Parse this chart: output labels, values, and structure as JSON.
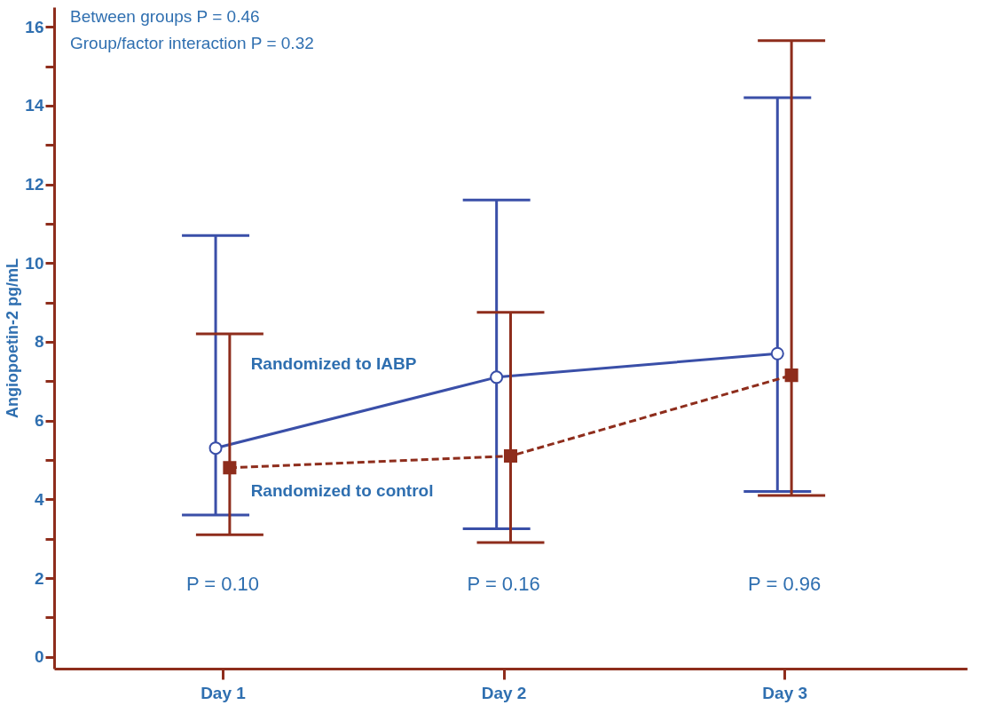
{
  "chart_data": {
    "type": "line",
    "ylabel": "Angiopoetin-2 pg/mL",
    "categories": [
      "Day 1",
      "Day 2",
      "Day 3"
    ],
    "series": [
      {
        "name": "Randomized to IABP",
        "color": "#3a4fa8",
        "values": [
          5.3,
          7.1,
          7.7
        ],
        "errors": [
          [
            3.6,
            10.7
          ],
          [
            3.25,
            11.6
          ],
          [
            4.2,
            14.2
          ]
        ],
        "marker": "circle",
        "line_style": "solid"
      },
      {
        "name": "Randomized to control",
        "color": "#8e2d1c",
        "values": [
          4.8,
          5.1,
          7.15
        ],
        "errors": [
          [
            3.1,
            8.2
          ],
          [
            2.9,
            8.75
          ],
          [
            4.1,
            15.65
          ]
        ],
        "marker": "square",
        "line_style": "dashed"
      }
    ],
    "ylim": [
      -0.3,
      16.5
    ],
    "yticks": [
      0,
      {
        "value": 1,
        "label": null
      },
      2,
      {
        "value": 3,
        "label": null
      },
      4,
      {
        "value": 5,
        "label": null
      },
      6,
      {
        "value": 7,
        "label": null
      },
      8,
      {
        "value": 9,
        "label": null
      },
      10,
      {
        "value": 11,
        "label": null
      },
      12,
      {
        "value": 13,
        "label": null
      },
      14,
      {
        "value": 15,
        "label": null
      },
      16
    ],
    "annotations": [
      "Between groups P = 0.46",
      "Group/factor interaction P = 0.32",
      "P = 0.10",
      "P = 0.16",
      "P = 0.96"
    ],
    "grid": false
  }
}
